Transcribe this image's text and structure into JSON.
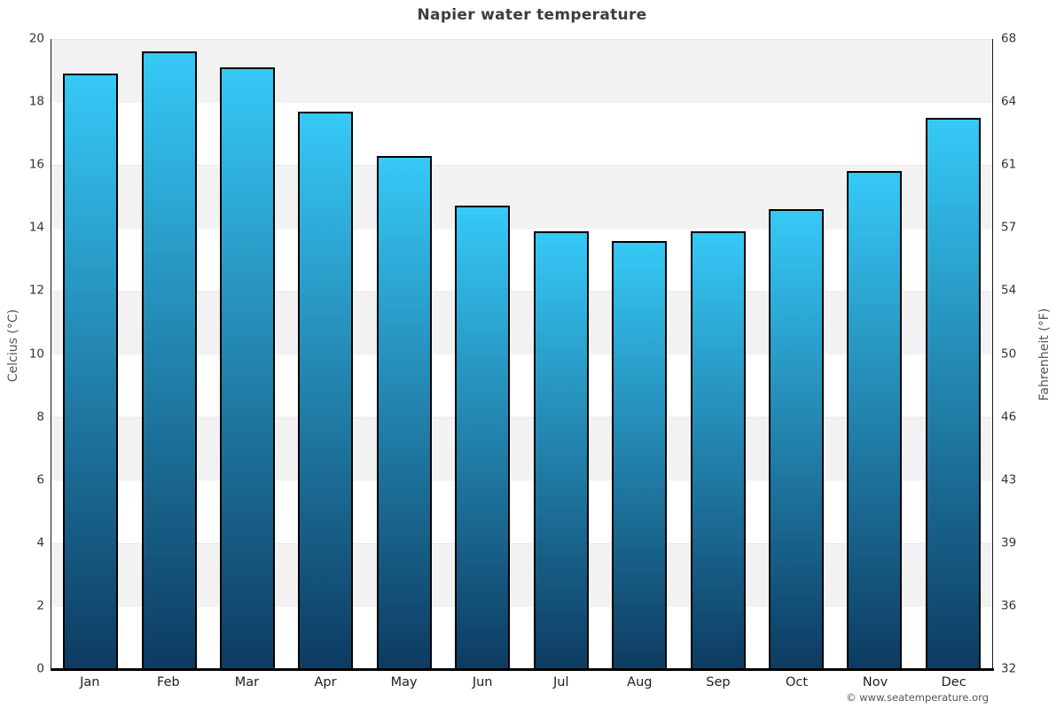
{
  "page": {
    "title": "Napier water temperature",
    "footer": "© www.seatemperature.org"
  },
  "colors": {
    "bar_gradient_top": "#36c9f7",
    "bar_gradient_bottom": "#0d3b61",
    "bar_border": "#000000",
    "band": "#f2f2f2",
    "title_text": "#3d3d3d",
    "tick_text": "#333333"
  },
  "chart_data": {
    "type": "bar",
    "title": "Napier water temperature",
    "categories": [
      "Jan",
      "Feb",
      "Mar",
      "Apr",
      "May",
      "Jun",
      "Jul",
      "Aug",
      "Sep",
      "Oct",
      "Nov",
      "Dec"
    ],
    "values": [
      18.9,
      19.6,
      19.1,
      17.7,
      16.3,
      14.7,
      13.9,
      13.6,
      13.9,
      14.6,
      15.8,
      17.5
    ],
    "series_name": "Water temperature",
    "xlabel": "",
    "ylabel_left": "Celcius (°C)",
    "ylabel_right": "Fahrenheit (°F)",
    "ylim": [
      0,
      20
    ],
    "yticks_left": [
      20,
      18,
      16,
      14,
      12,
      10,
      8,
      6,
      4,
      2,
      0
    ],
    "yticks_right": [
      68,
      64,
      61,
      57,
      54,
      50,
      46,
      43,
      39,
      36,
      32
    ],
    "grid": "alternating horizontal bands every 2°C, gray band from 20-18 downward alternating",
    "legend": "none"
  }
}
